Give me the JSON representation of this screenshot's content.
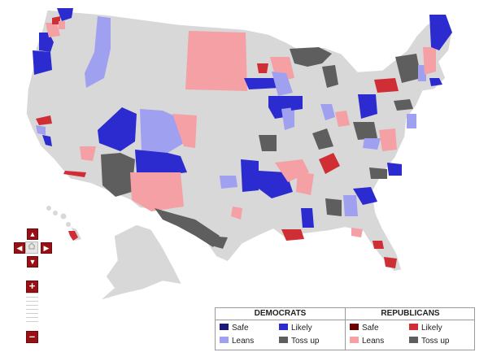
{
  "colors": {
    "background": "#ffffff",
    "land": "#d8d8d8",
    "border": "#ffffff",
    "dem_safe": "#1a1a7a",
    "dem_likely": "#2b2bcf",
    "dem_leans": "#a0a0f0",
    "rep_safe": "#6b0000",
    "rep_likely": "#cf2e34",
    "rep_leans": "#f4a0a4",
    "tossup": "#5e5e5e",
    "control": "#9a0f13"
  },
  "controls": {
    "pan_up": "up-arrow",
    "pan_left": "left-arrow",
    "pan_right": "right-arrow",
    "pan_down": "down-arrow",
    "home": "home",
    "zoom_in": "+",
    "zoom_out": "–"
  },
  "legend": {
    "democrats": {
      "title": "DEMOCRATS",
      "items": [
        {
          "label": "Safe",
          "color": "#1a1a7a"
        },
        {
          "label": "Likely",
          "color": "#2b2bcf"
        },
        {
          "label": "Leans",
          "color": "#a0a0f0"
        },
        {
          "label": "Toss up",
          "color": "#5e5e5e"
        }
      ]
    },
    "republicans": {
      "title": "REPUBLICANS",
      "items": [
        {
          "label": "Safe",
          "color": "#6b0000"
        },
        {
          "label": "Likely",
          "color": "#cf2e34"
        },
        {
          "label": "Leans",
          "color": "#f4a0a4"
        },
        {
          "label": "Toss up",
          "color": "#5e5e5e"
        }
      ]
    }
  }
}
